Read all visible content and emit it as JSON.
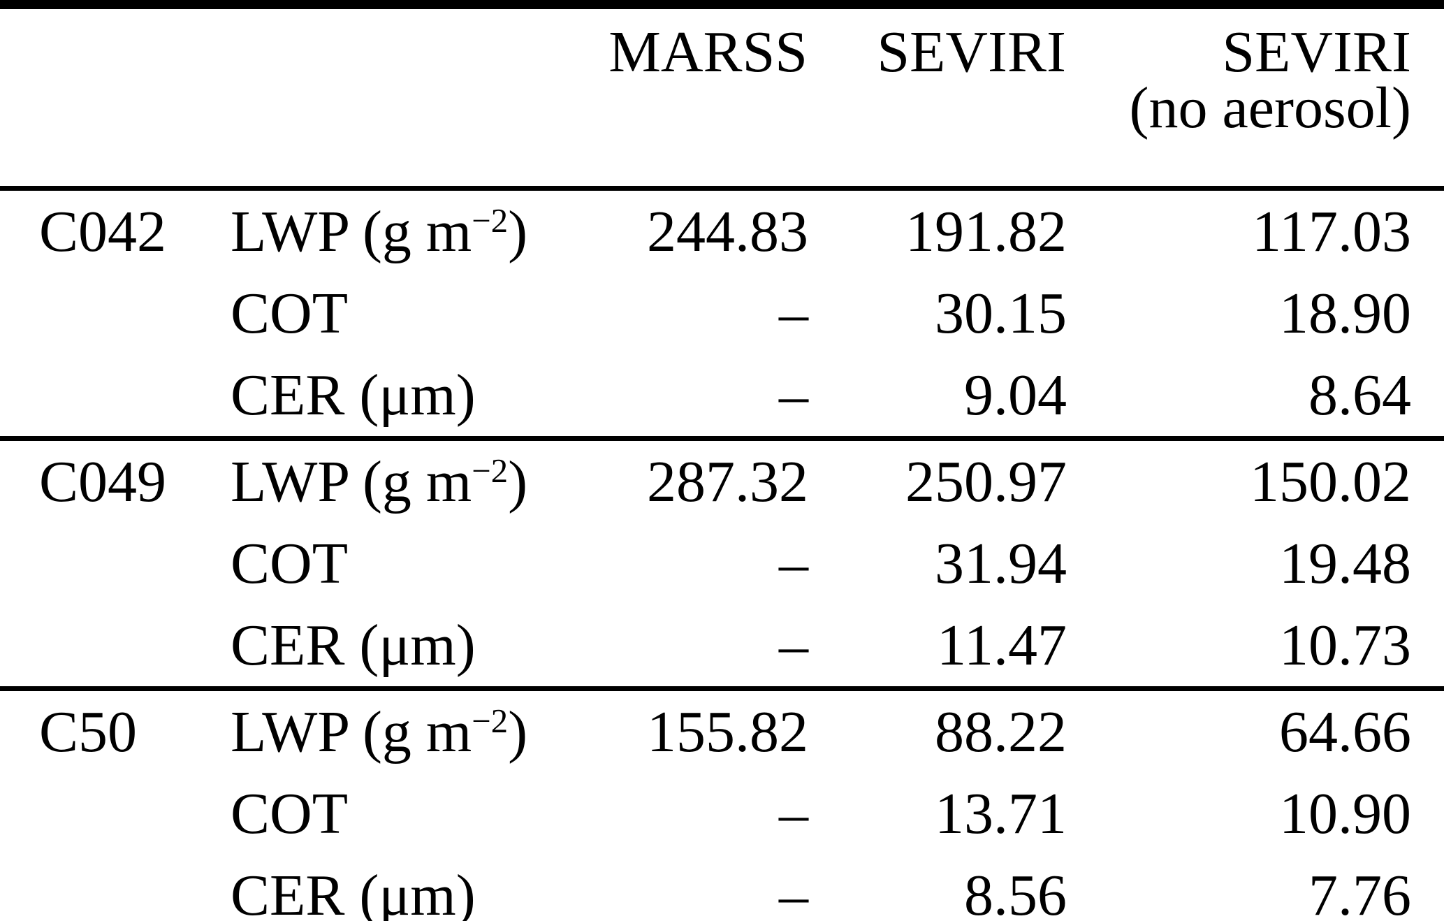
{
  "table": {
    "header": {
      "marss": "MARSS",
      "seviri": "SEVIRI",
      "seviri_no_aerosol_line1": "SEVIRI",
      "seviri_no_aerosol_line2": "(no aerosol)"
    },
    "groups": [
      {
        "case": "C042",
        "rows": [
          {
            "param": {
              "prefix": "LWP (g m",
              "sup": "−2",
              "suffix": ")"
            },
            "marss": "244.83",
            "seviri": "191.82",
            "seviri_no_aerosol": "117.03"
          },
          {
            "param": {
              "prefix": "COT",
              "sup": "",
              "suffix": ""
            },
            "marss": "–",
            "seviri": "30.15",
            "seviri_no_aerosol": "18.90"
          },
          {
            "param": {
              "prefix": "CER (μm)",
              "sup": "",
              "suffix": ""
            },
            "marss": "–",
            "seviri": "9.04",
            "seviri_no_aerosol": "8.64"
          }
        ]
      },
      {
        "case": "C049",
        "rows": [
          {
            "param": {
              "prefix": "LWP (g m",
              "sup": "−2",
              "suffix": ")"
            },
            "marss": "287.32",
            "seviri": "250.97",
            "seviri_no_aerosol": "150.02"
          },
          {
            "param": {
              "prefix": "COT",
              "sup": "",
              "suffix": ""
            },
            "marss": "–",
            "seviri": "31.94",
            "seviri_no_aerosol": "19.48"
          },
          {
            "param": {
              "prefix": "CER (μm)",
              "sup": "",
              "suffix": ""
            },
            "marss": "–",
            "seviri": "11.47",
            "seviri_no_aerosol": "10.73"
          }
        ]
      },
      {
        "case": "C50",
        "rows": [
          {
            "param": {
              "prefix": "LWP (g m",
              "sup": "−2",
              "suffix": ")"
            },
            "marss": "155.82",
            "seviri": "88.22",
            "seviri_no_aerosol": "64.66"
          },
          {
            "param": {
              "prefix": "COT",
              "sup": "",
              "suffix": ""
            },
            "marss": "–",
            "seviri": "13.71",
            "seviri_no_aerosol": "10.90"
          },
          {
            "param": {
              "prefix": "CER (μm)",
              "sup": "",
              "suffix": ""
            },
            "marss": "–",
            "seviri": "8.56",
            "seviri_no_aerosol": "7.76"
          }
        ]
      }
    ]
  }
}
